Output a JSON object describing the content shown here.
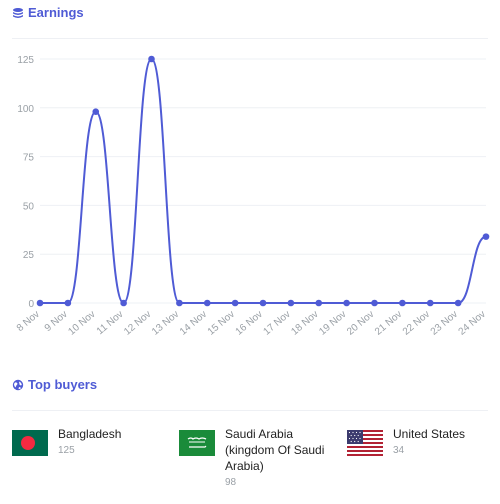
{
  "earnings": {
    "title": "Earnings",
    "icon": "coins-icon"
  },
  "top_buyers": {
    "title": "Top buyers",
    "icon": "globe-icon",
    "items": [
      {
        "country": "Bangladesh",
        "count": "125",
        "flag": "bangladesh-flag"
      },
      {
        "country": "Saudi Arabia (kingdom Of Saudi Arabia)",
        "count": "98",
        "flag": "saudi-arabia-flag"
      },
      {
        "country": "United States",
        "count": "34",
        "flag": "united-states-flag"
      }
    ]
  },
  "colors": {
    "accent": "#4f5bd5",
    "line": "#4f5bd5",
    "grid": "#eef0f4",
    "muted": "#9aa0a6"
  },
  "chart_data": {
    "type": "line",
    "x": [
      "8 Nov",
      "9 Nov",
      "10 Nov",
      "11 Nov",
      "12 Nov",
      "13 Nov",
      "14 Nov",
      "15 Nov",
      "16 Nov",
      "17 Nov",
      "18 Nov",
      "19 Nov",
      "20 Nov",
      "21 Nov",
      "22 Nov",
      "23 Nov",
      "24 Nov"
    ],
    "series": [
      {
        "values": [
          0,
          0,
          98,
          0,
          125,
          0,
          0,
          0,
          0,
          0,
          0,
          0,
          0,
          0,
          0,
          0,
          34
        ]
      }
    ],
    "yticks": [
      0,
      25,
      50,
      75,
      100,
      125
    ],
    "ylim": [
      0,
      125
    ],
    "grid": true,
    "legend": "none"
  }
}
